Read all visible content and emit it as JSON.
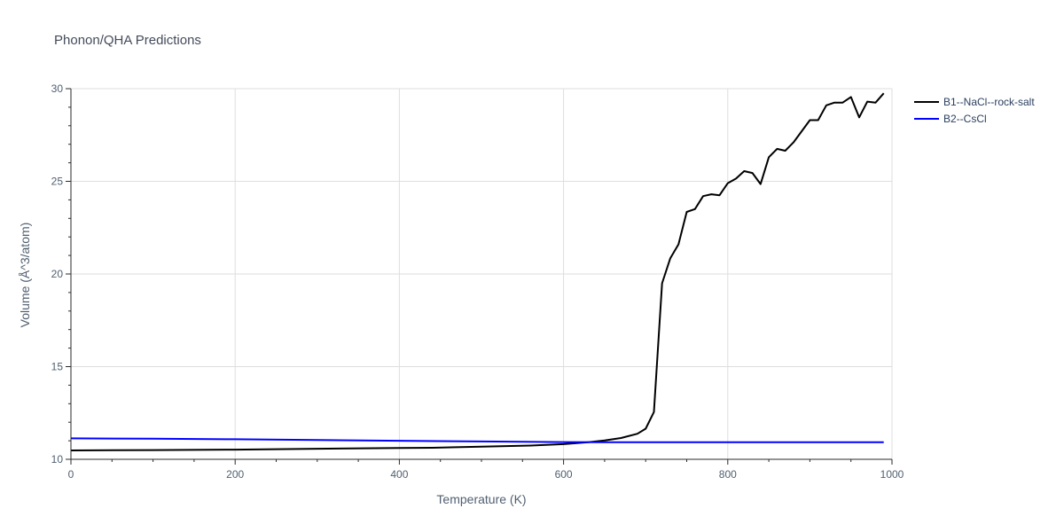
{
  "chart_data": {
    "type": "line",
    "title": "Phonon/QHA Predictions",
    "xlabel": "Temperature (K)",
    "ylabel": "Volume (Å^3/atom)",
    "xlim": [
      0,
      1000
    ],
    "ylim": [
      10,
      30
    ],
    "x_ticks": [
      0,
      200,
      400,
      600,
      800,
      1000
    ],
    "y_ticks": [
      10,
      15,
      20,
      25,
      30
    ],
    "grid": true,
    "legend_position": "top-right outside",
    "series": [
      {
        "name": "B1--NaCl--rock-salt",
        "color": "#000000",
        "x": [
          0,
          100,
          200,
          300,
          400,
          440,
          500,
          560,
          600,
          630,
          650,
          670,
          690,
          700,
          710,
          720,
          730,
          740,
          750,
          760,
          770,
          780,
          790,
          800,
          810,
          820,
          830,
          840,
          850,
          860,
          870,
          880,
          890,
          900,
          910,
          920,
          930,
          940,
          950,
          960,
          970,
          980,
          990
        ],
        "y": [
          10.48,
          10.5,
          10.52,
          10.57,
          10.61,
          10.62,
          10.68,
          10.74,
          10.82,
          10.92,
          11.02,
          11.15,
          11.38,
          11.65,
          12.55,
          19.5,
          20.85,
          21.6,
          23.35,
          23.5,
          24.2,
          24.3,
          24.25,
          24.9,
          25.15,
          25.55,
          25.45,
          24.85,
          26.3,
          26.75,
          26.65,
          27.1,
          27.7,
          28.3,
          28.3,
          29.1,
          29.25,
          29.25,
          29.55,
          28.45,
          29.3,
          29.25,
          29.75
        ]
      },
      {
        "name": "B2--CsCl",
        "color": "#0000ff",
        "x": [
          0,
          100,
          200,
          300,
          400,
          500,
          600,
          650,
          700,
          800,
          900,
          990
        ],
        "y": [
          11.13,
          11.11,
          11.08,
          11.04,
          11.0,
          10.96,
          10.93,
          10.92,
          10.92,
          10.92,
          10.92,
          10.92
        ]
      }
    ]
  }
}
